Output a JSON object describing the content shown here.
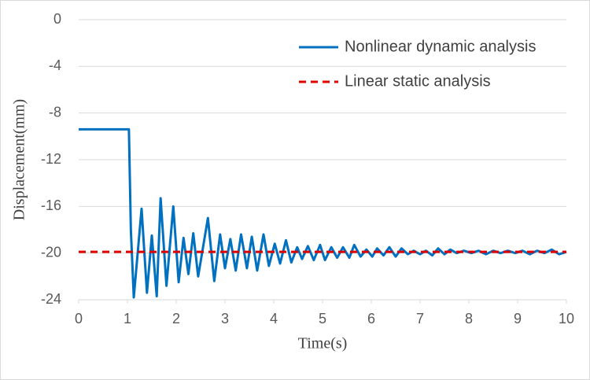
{
  "chart_data": {
    "type": "line",
    "x_label": "Time(s)",
    "y_label": "Displacement(mm)",
    "xlim": [
      0,
      10
    ],
    "xticks": [
      0,
      1,
      2,
      3,
      4,
      5,
      6,
      7,
      8,
      9,
      10
    ],
    "ylim": [
      -24,
      0
    ],
    "yticks": [
      0,
      -4,
      -8,
      -12,
      -16,
      -20,
      -24
    ],
    "grid": true,
    "legend": "upper right",
    "series": [
      {
        "name": "Nonlinear dynamic analysis",
        "color": "#0070c0",
        "dash": false,
        "x": [
          0,
          1.03,
          1.07,
          1.13,
          1.29,
          1.4,
          1.5,
          1.6,
          1.68,
          1.8,
          1.94,
          2.05,
          2.15,
          2.25,
          2.35,
          2.45,
          2.55,
          2.65,
          2.78,
          2.9,
          3.0,
          3.11,
          3.22,
          3.33,
          3.45,
          3.55,
          3.66,
          3.79,
          3.9,
          4.02,
          4.13,
          4.25,
          4.36,
          4.48,
          4.58,
          4.7,
          4.82,
          4.95,
          5.05,
          5.18,
          5.3,
          5.42,
          5.55,
          5.65,
          5.78,
          5.9,
          6.02,
          6.12,
          6.25,
          6.37,
          6.5,
          6.62,
          6.75,
          6.87,
          7.0,
          7.12,
          7.25,
          7.37,
          7.5,
          7.62,
          7.75,
          7.9,
          8.05,
          8.2,
          8.35,
          8.5,
          8.65,
          8.8,
          8.95,
          9.1,
          9.25,
          9.4,
          9.55,
          9.7,
          9.85,
          10
        ],
        "values": [
          -9.4,
          -9.4,
          -18,
          -23.8,
          -16.2,
          -23.4,
          -18.5,
          -23.7,
          -15.3,
          -22.8,
          -16.0,
          -22.5,
          -18.7,
          -21.8,
          -18.3,
          -22.0,
          -19.5,
          -17.0,
          -22.4,
          -18.4,
          -21.3,
          -18.8,
          -21.5,
          -18.4,
          -21.3,
          -18.6,
          -21.5,
          -18.4,
          -21.1,
          -19.2,
          -20.9,
          -18.9,
          -20.8,
          -19.5,
          -20.5,
          -19.4,
          -20.6,
          -19.3,
          -20.6,
          -19.5,
          -20.4,
          -19.5,
          -20.4,
          -19.3,
          -20.3,
          -19.7,
          -20.3,
          -19.6,
          -20.2,
          -19.5,
          -20.3,
          -19.6,
          -20.1,
          -19.8,
          -20.1,
          -19.8,
          -20.2,
          -19.6,
          -20.1,
          -19.7,
          -20.0,
          -19.8,
          -20.0,
          -19.8,
          -20.1,
          -19.8,
          -20.0,
          -19.8,
          -20.0,
          -19.8,
          -20.1,
          -19.8,
          -20.0,
          -19.7,
          -20.1,
          -19.9
        ]
      },
      {
        "name": "Linear static analysis",
        "color": "#e00000",
        "dash": true,
        "x": [
          0,
          10
        ],
        "values": [
          -19.9,
          -19.9
        ]
      }
    ]
  }
}
